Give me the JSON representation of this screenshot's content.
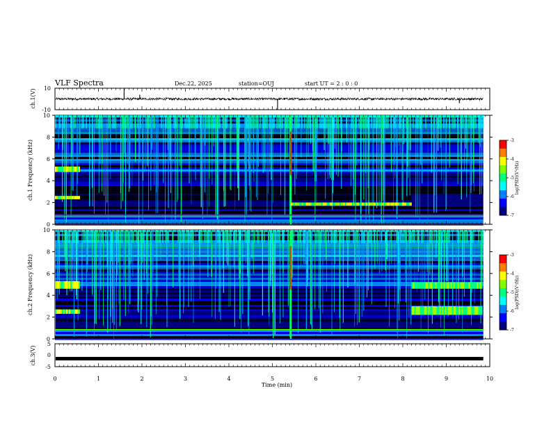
{
  "header": {
    "title": "VLF Spectra",
    "date": "Dec.22, 2025",
    "station": "station=OUJ",
    "start": "start  UT  =   2  : 0  : 0"
  },
  "chart_data": [
    {
      "type": "line",
      "id": "ch1-waveform",
      "ylabel": "ch.1(V)",
      "ylim": [
        -10,
        10
      ],
      "yticks": [
        "10",
        "-10"
      ],
      "baseline": 0,
      "spikes": [
        {
          "t": 1.59,
          "v": 9.5
        },
        {
          "t": 1.95,
          "v": 4
        },
        {
          "t": 5.12,
          "v": -9.8
        },
        {
          "t": 9.3,
          "v": -4
        }
      ]
    },
    {
      "type": "heatmap",
      "id": "ch1-spectrogram",
      "ylabel": "ch.1 Frequency (kHz)",
      "ylim": [
        0,
        10
      ],
      "yticks": [
        "0",
        "2",
        "4",
        "6",
        "8",
        "10"
      ],
      "xlim": [
        0,
        10
      ],
      "features": [
        {
          "label": "broadband burst",
          "t": 5.42,
          "f_range": [
            0,
            10
          ]
        },
        {
          "label": "band 4.8-5.3 kHz",
          "t_range": [
            0,
            0.55
          ]
        },
        {
          "label": "band 2.3-2.6 kHz",
          "t_range": [
            0,
            0.55
          ]
        },
        {
          "label": "band 1.7-2.0 kHz",
          "t_range": [
            5.42,
            8.2
          ]
        }
      ],
      "colorbar": {
        "label": "log(PSD)(V²/Hz)",
        "ticks": [
          "-3",
          "-4",
          "-5",
          "-6",
          "-7"
        ],
        "range": [
          -7,
          -3
        ]
      }
    },
    {
      "type": "heatmap",
      "id": "ch2-spectrogram",
      "ylabel": "ch.2 Frequency (kHz)",
      "ylim": [
        0,
        10
      ],
      "yticks": [
        "0",
        "2",
        "4",
        "6",
        "8",
        "10"
      ],
      "xlim": [
        0,
        10
      ],
      "features": [
        {
          "label": "broadband burst",
          "t": 5.42,
          "f_range": [
            0,
            10
          ]
        },
        {
          "label": "band 4.6-5.3 kHz",
          "t_range": [
            0,
            0.55
          ]
        },
        {
          "label": "band 2.3-2.7 kHz",
          "t_range": [
            0,
            0.55
          ]
        },
        {
          "label": "band 4.6-5.2 kHz",
          "t_range": [
            8.2,
            9.8
          ]
        },
        {
          "label": "band 2.2-3.0 kHz",
          "t_range": [
            8.2,
            9.8
          ]
        }
      ],
      "colorbar": {
        "label": "log(PSD)(V²/Hz)",
        "ticks": [
          "-3",
          "-4",
          "-5",
          "-6",
          "-7"
        ],
        "range": [
          -7,
          -3
        ]
      }
    },
    {
      "type": "line",
      "id": "ch3-waveform",
      "ylabel": "ch.3(V)",
      "ylim": [
        -5,
        5
      ],
      "yticks": [
        "5",
        "0",
        "-5"
      ],
      "baseline": -1.5
    }
  ],
  "xaxis": {
    "label": "Time  (min)",
    "ticks": [
      "0",
      "1",
      "2",
      "3",
      "4",
      "5",
      "6",
      "7",
      "8",
      "9",
      "10"
    ],
    "xlim": [
      0,
      10
    ],
    "data_end": 9.85
  },
  "colormap": [
    "#000000",
    "#000080",
    "#0000ff",
    "#00a0ff",
    "#00ffff",
    "#00ff80",
    "#a0ff00",
    "#ffff00",
    "#ff8000",
    "#ff0000"
  ]
}
